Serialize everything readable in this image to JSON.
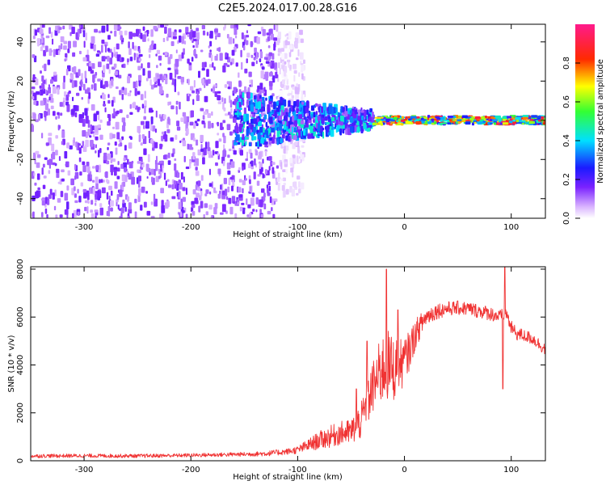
{
  "title": "C2E5.2024.017.00.28.G16",
  "chart_data": [
    {
      "type": "heatmap",
      "xlabel": "Height of straight line (km)",
      "ylabel": "Frequency (Hz)",
      "xlim": [
        -350,
        132
      ],
      "ylim": [
        -50,
        49
      ],
      "x_ticks": [
        -300,
        -200,
        -100,
        0,
        100
      ],
      "y_ticks": [
        -40,
        -20,
        0,
        20,
        40
      ],
      "colorbar": {
        "label": "Normalized spectral amplitude",
        "range": [
          0,
          1
        ],
        "ticks": [
          0.0,
          0.2,
          0.4,
          0.6,
          0.8
        ],
        "colors": [
          "#ffffff",
          "#cc99ff",
          "#7a22ff",
          "#1b1bff",
          "#00e0ff",
          "#33ff33",
          "#ffff00",
          "#ff2a00",
          "#ff1a8c"
        ]
      },
      "regions": [
        {
          "x_range": [
            -350,
            -120
          ],
          "f_range": [
            -50,
            49
          ],
          "amplitude_range": [
            0.05,
            0.18
          ],
          "pattern": "broadband noise"
        },
        {
          "x_range": [
            -120,
            -95
          ],
          "f_range": [
            -38,
            45
          ],
          "amplitude_range": [
            0.0,
            0.06
          ],
          "pattern": "faint noise"
        },
        {
          "x_range": [
            -160,
            -30
          ],
          "f_range": [
            -12,
            14
          ],
          "amplitude_range": [
            0.1,
            0.45
          ],
          "pattern": "narrowing signal"
        },
        {
          "x_range": [
            -30,
            132
          ],
          "f_range": [
            -2,
            2
          ],
          "amplitude_range": [
            0.2,
            0.95
          ],
          "pattern": "carrier line near 0 Hz"
        }
      ]
    },
    {
      "type": "line",
      "xlabel": "Height of straight line (km)",
      "ylabel": "SNR (10 * v/v)",
      "xlim": [
        -350,
        132
      ],
      "ylim": [
        0,
        8100
      ],
      "x_ticks": [
        -300,
        -200,
        -100,
        0,
        100
      ],
      "y_ticks": [
        0,
        2000,
        4000,
        6000,
        8000
      ],
      "color": "#f03232",
      "x": [
        -350,
        -300,
        -250,
        -200,
        -150,
        -130,
        -110,
        -100,
        -90,
        -80,
        -70,
        -60,
        -50,
        -40,
        -35,
        -30,
        -25,
        -20,
        -15,
        -10,
        -5,
        0,
        5,
        10,
        15,
        20,
        30,
        40,
        50,
        60,
        70,
        80,
        90,
        95,
        100,
        105,
        110,
        120,
        132
      ],
      "y": [
        200,
        210,
        200,
        230,
        270,
        300,
        380,
        450,
        650,
        850,
        1000,
        1150,
        1200,
        1700,
        2400,
        3000,
        3500,
        3850,
        3950,
        3850,
        3950,
        4150,
        4650,
        5250,
        5650,
        6000,
        6250,
        6350,
        6380,
        6350,
        6250,
        6150,
        6000,
        6200,
        5550,
        5300,
        5250,
        5100,
        4650
      ],
      "noise_amplitude": [
        80,
        80,
        80,
        80,
        90,
        110,
        130,
        160,
        260,
        380,
        460,
        500,
        550,
        800,
        1000,
        1100,
        1300,
        1500,
        1500,
        1400,
        1100,
        1000,
        800,
        650,
        500,
        400,
        350,
        300,
        300,
        300,
        300,
        300,
        300,
        300,
        300,
        280,
        270,
        260,
        260
      ],
      "spikes": [
        {
          "x": -45,
          "y": 3000
        },
        {
          "x": -35,
          "y": 5000
        },
        {
          "x": -17,
          "y": 8000
        },
        {
          "x": -6,
          "y": 6300
        },
        {
          "x": 94,
          "y": 8100
        },
        {
          "x": 92,
          "y": 3000
        }
      ]
    }
  ]
}
